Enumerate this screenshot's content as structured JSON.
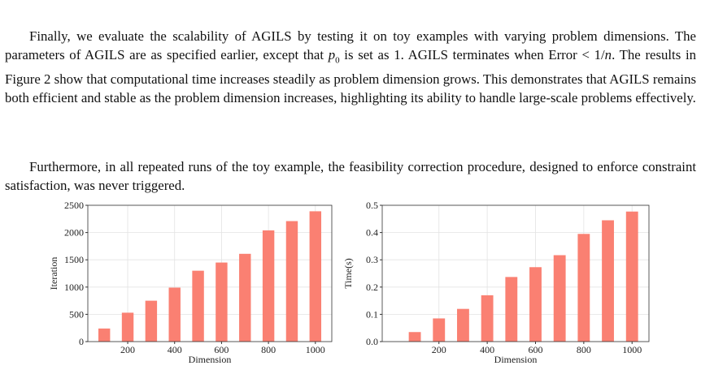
{
  "paragraphs": [
    [
      "Finally, we evaluate the scalability of AGILS by testing it on toy examples with varying problem dimensions. The parameters of AGILS are as specified earlier, except that ",
      "p",
      "0",
      " is set as 1. AGILS terminates when Error ",
      "<",
      " 1",
      "/",
      "n",
      ". The results in Figure 2 show that computational time increases steadily as problem dimension grows. This demonstrates that AGILS remains both efficient and stable as the problem dimension increases, highlighting its ability to handle large-scale problems effectively."
    ],
    [
      "Furthermore, in all repeated runs of the toy example, the feasibility correction procedure, designed to enforce constraint satisfaction, was never triggered."
    ]
  ],
  "chart_data": [
    {
      "type": "bar",
      "x_label": "Dimension",
      "y_label": "Iteration",
      "color": "#fa8072",
      "grid": true,
      "x": [
        100,
        200,
        300,
        400,
        500,
        600,
        700,
        800,
        900,
        1000
      ],
      "values": [
        240,
        530,
        750,
        990,
        1300,
        1450,
        1610,
        2040,
        2210,
        2390
      ],
      "xlim": [
        30,
        1070
      ],
      "xticks": [
        200,
        400,
        600,
        800,
        1000
      ],
      "ylim": [
        0,
        2500
      ],
      "yticks": [
        0,
        500,
        1000,
        1500,
        2000,
        2500
      ]
    },
    {
      "type": "bar",
      "x_label": "Dimension",
      "y_label": "Time(s)",
      "color": "#fa8072",
      "grid": true,
      "x": [
        100,
        200,
        300,
        400,
        500,
        600,
        700,
        800,
        900,
        1000
      ],
      "values": [
        0.035,
        0.085,
        0.12,
        0.17,
        0.237,
        0.273,
        0.317,
        0.395,
        0.445,
        0.477
      ],
      "xlim": [
        -35,
        1070
      ],
      "xticks": [
        200,
        400,
        600,
        800,
        1000
      ],
      "ylim": [
        0,
        0.5
      ],
      "yticks": [
        {
          "value": 0,
          "label": "0.0"
        },
        0.1,
        0.2,
        0.3,
        0.4,
        0.5
      ]
    }
  ]
}
